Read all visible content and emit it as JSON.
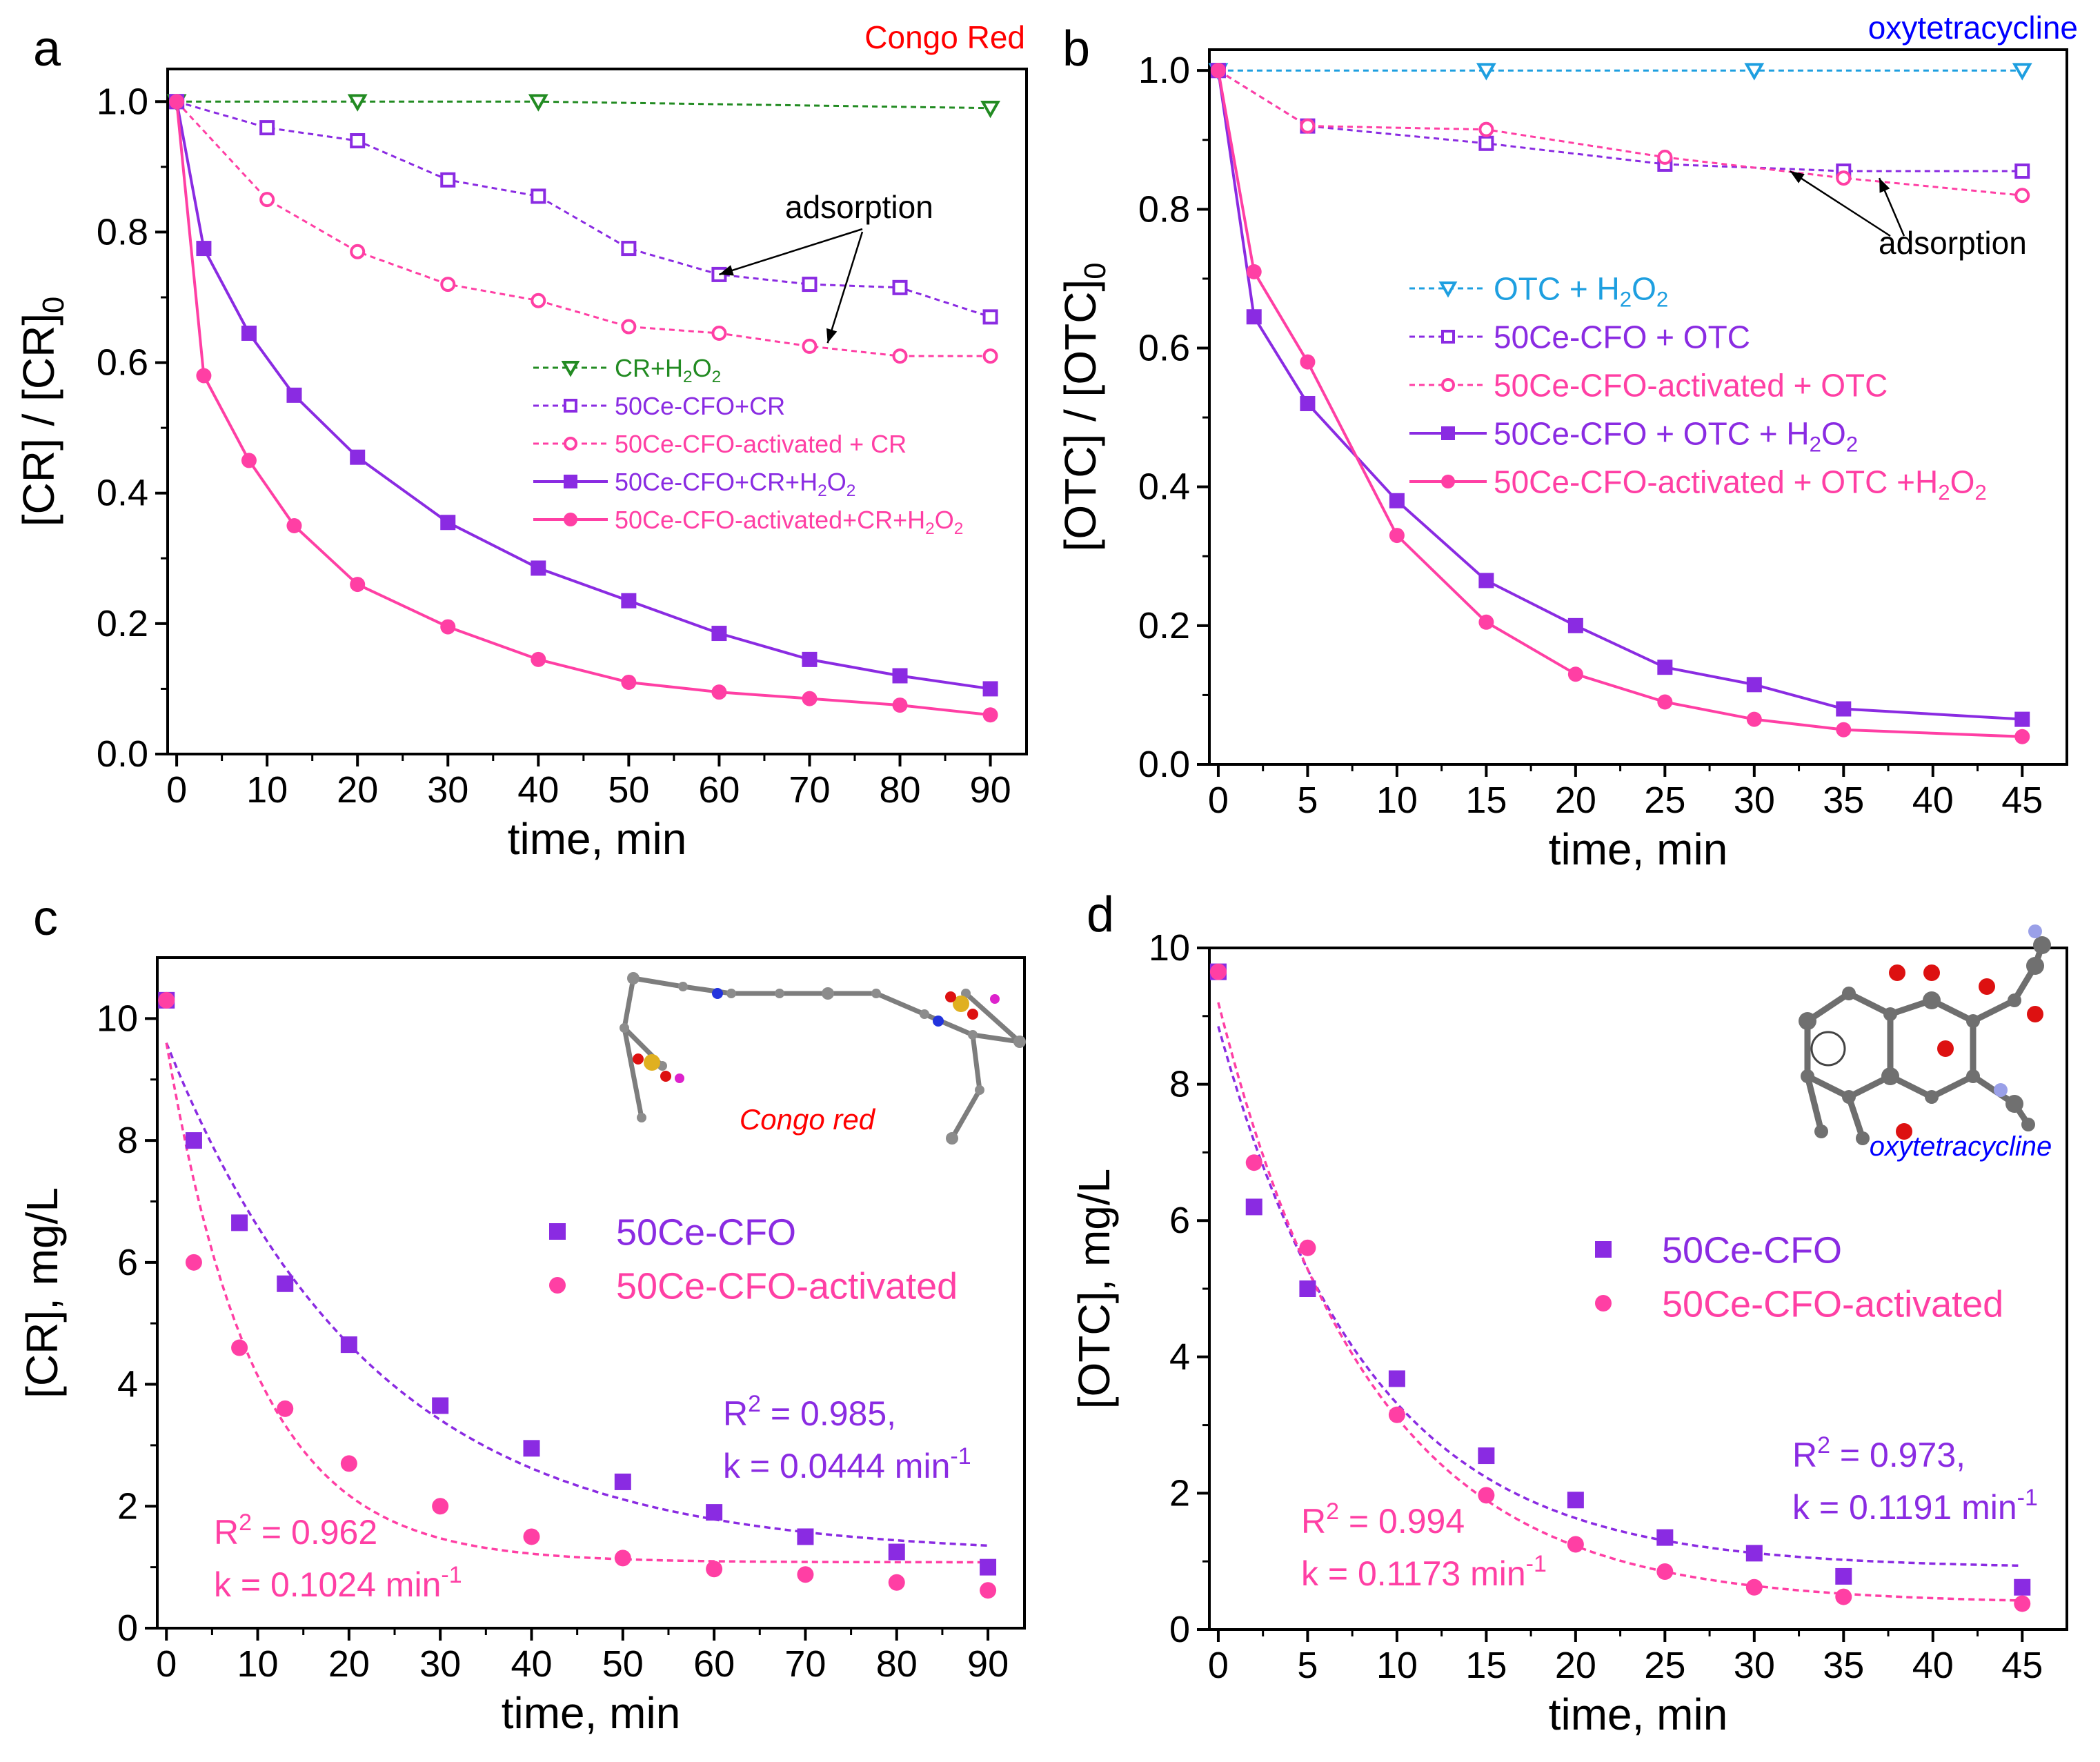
{
  "colors": {
    "green": "#228B22",
    "purple": "#8A2BE2",
    "pink": "#FF3FA4",
    "red": "#FF0000",
    "blue": "#0000FF",
    "cyan": "#1E9FE0"
  },
  "chart_data": [
    {
      "id": "a",
      "type": "line",
      "panel_label": "a",
      "title": "Congo Red",
      "title_color": "red",
      "xlabel": "time, min",
      "ylabel": "[CR] / [CR]₀",
      "xlim": [
        -1,
        94
      ],
      "ylim": [
        0,
        1.05
      ],
      "xticks": [
        0,
        10,
        20,
        30,
        40,
        50,
        60,
        70,
        80,
        90
      ],
      "yticks": [
        0.0,
        0.2,
        0.4,
        0.6,
        0.8,
        1.0
      ],
      "legend_position": "center-right",
      "series": [
        {
          "name": "CR+H₂O₂",
          "color": "green",
          "marker": "triangle-down-open",
          "dash": true,
          "x": [
            0,
            20,
            40,
            90
          ],
          "y": [
            1.0,
            1.0,
            1.0,
            0.99
          ]
        },
        {
          "name": "50Ce-CFO+CR",
          "color": "purple",
          "marker": "square-open",
          "dash": true,
          "x": [
            0,
            10,
            20,
            30,
            40,
            50,
            60,
            70,
            80,
            90
          ],
          "y": [
            1.0,
            0.96,
            0.94,
            0.88,
            0.855,
            0.775,
            0.735,
            0.72,
            0.715,
            0.67
          ]
        },
        {
          "name": "50Ce-CFO-activated + CR",
          "color": "pink",
          "marker": "circle-open",
          "dash": true,
          "x": [
            0,
            10,
            20,
            30,
            40,
            50,
            60,
            70,
            80,
            90
          ],
          "y": [
            1.0,
            0.85,
            0.77,
            0.72,
            0.695,
            0.655,
            0.645,
            0.625,
            0.61,
            0.61
          ]
        },
        {
          "name": "50Ce-CFO+CR+H₂O₂",
          "color": "purple",
          "marker": "square",
          "dash": false,
          "x": [
            0,
            3,
            8,
            13,
            20,
            30,
            40,
            50,
            60,
            70,
            80,
            90
          ],
          "y": [
            1.0,
            0.775,
            0.645,
            0.55,
            0.455,
            0.355,
            0.285,
            0.235,
            0.185,
            0.145,
            0.12,
            0.1
          ]
        },
        {
          "name": "50Ce-CFO-activated+CR+H₂O₂",
          "color": "pink",
          "marker": "circle",
          "dash": false,
          "x": [
            0,
            3,
            8,
            13,
            20,
            30,
            40,
            50,
            60,
            70,
            80,
            90
          ],
          "y": [
            1.0,
            0.58,
            0.45,
            0.35,
            0.26,
            0.195,
            0.145,
            0.11,
            0.095,
            0.085,
            0.075,
            0.06
          ]
        }
      ],
      "annotations": [
        {
          "text": "adsorption",
          "arrow_targets": [
            [
              60,
              0.735
            ],
            [
              72,
              0.63
            ]
          ]
        }
      ]
    },
    {
      "id": "b",
      "type": "line",
      "panel_label": "b",
      "title": "oxytetracycline",
      "title_color": "blue",
      "xlabel": "time, min",
      "ylabel": "[OTC] / [OTC]₀",
      "xlim": [
        -0.5,
        47.5
      ],
      "ylim": [
        0,
        1.03
      ],
      "xticks": [
        0,
        5,
        10,
        15,
        20,
        25,
        30,
        35,
        40,
        45
      ],
      "yticks": [
        0.0,
        0.2,
        0.4,
        0.6,
        0.8,
        1.0
      ],
      "legend_position": "center",
      "series": [
        {
          "name": "OTC + H₂O₂",
          "color": "cyan",
          "marker": "triangle-down-open",
          "dash": true,
          "x": [
            0,
            15,
            30,
            45
          ],
          "y": [
            1.0,
            1.0,
            1.0,
            1.0
          ]
        },
        {
          "name": "50Ce-CFO + OTC",
          "color": "purple",
          "marker": "square-open",
          "dash": true,
          "x": [
            0,
            5,
            15,
            25,
            35,
            45
          ],
          "y": [
            1.0,
            0.92,
            0.895,
            0.865,
            0.855,
            0.855
          ]
        },
        {
          "name": "50Ce-CFO-activated + OTC",
          "color": "pink",
          "marker": "circle-open",
          "dash": true,
          "x": [
            0,
            5,
            15,
            25,
            35,
            45
          ],
          "y": [
            1.0,
            0.92,
            0.915,
            0.875,
            0.845,
            0.82
          ]
        },
        {
          "name": "50Ce-CFO + OTC + H₂O₂",
          "color": "purple",
          "marker": "square",
          "dash": false,
          "x": [
            0,
            2,
            5,
            10,
            15,
            20,
            25,
            30,
            35,
            45
          ],
          "y": [
            1.0,
            0.645,
            0.52,
            0.38,
            0.265,
            0.2,
            0.14,
            0.115,
            0.08,
            0.065
          ]
        },
        {
          "name": "50Ce-CFO-activated + OTC +H₂O₂",
          "color": "pink",
          "marker": "circle",
          "dash": false,
          "x": [
            0,
            2,
            5,
            10,
            15,
            20,
            25,
            30,
            35,
            45
          ],
          "y": [
            1.0,
            0.71,
            0.58,
            0.33,
            0.205,
            0.13,
            0.09,
            0.065,
            0.05,
            0.04
          ]
        }
      ],
      "annotations": [
        {
          "text": "adsorption",
          "arrow_targets": [
            [
              32,
              0.855
            ],
            [
              37,
              0.845
            ]
          ]
        }
      ]
    },
    {
      "id": "c",
      "type": "scatter",
      "panel_label": "c",
      "xlabel": "time, min",
      "ylabel": "[CR], mg/L",
      "xlim": [
        -1,
        94
      ],
      "ylim": [
        0,
        11
      ],
      "xticks": [
        0,
        10,
        20,
        30,
        40,
        50,
        60,
        70,
        80,
        90
      ],
      "yticks": [
        0,
        2,
        4,
        6,
        8,
        10
      ],
      "legend_position": "center-right",
      "inset_caption": "Congo red",
      "inset_caption_color": "red",
      "series": [
        {
          "name": "50Ce-CFO",
          "color": "purple",
          "marker": "square",
          "x": [
            0,
            3,
            8,
            13,
            20,
            30,
            40,
            50,
            60,
            70,
            80,
            90
          ],
          "y": [
            10.3,
            8.0,
            6.65,
            5.65,
            4.65,
            3.65,
            2.95,
            2.4,
            1.9,
            1.5,
            1.25,
            1.0
          ]
        },
        {
          "name": "50Ce-CFO-activated",
          "color": "pink",
          "marker": "circle",
          "x": [
            0,
            3,
            8,
            13,
            20,
            30,
            40,
            50,
            60,
            70,
            80,
            90
          ],
          "y": [
            10.3,
            6.0,
            4.6,
            3.6,
            2.7,
            2.0,
            1.5,
            1.15,
            0.97,
            0.88,
            0.75,
            0.62
          ]
        }
      ],
      "fits": [
        {
          "series": "50Ce-CFO",
          "color": "purple",
          "c0": 9.6,
          "k": 0.0444,
          "cinf": 1.2,
          "x_range": [
            0,
            90
          ],
          "r2_label": "R",
          "r2_sup": "2",
          "r2_value": " = 0.985,",
          "k_label": "k = 0.0444 min",
          "k_sup": "-1"
        },
        {
          "series": "50Ce-CFO-activated",
          "color": "pink",
          "c0": 9.6,
          "k": 0.1024,
          "cinf": 1.08,
          "x_range": [
            0,
            90
          ],
          "r2_label": "R",
          "r2_sup": "2",
          "r2_value": " = 0.962",
          "k_label": "k = 0.1024 min",
          "k_sup": "-1"
        }
      ]
    },
    {
      "id": "d",
      "type": "scatter",
      "panel_label": "d",
      "xlabel": "time, min",
      "ylabel": "[OTC], mg/L",
      "xlim": [
        -0.5,
        47.5
      ],
      "ylim": [
        0,
        10
      ],
      "xticks": [
        0,
        5,
        10,
        15,
        20,
        25,
        30,
        35,
        40,
        45
      ],
      "yticks": [
        0,
        2,
        4,
        6,
        8,
        10
      ],
      "legend_position": "center-right",
      "inset_caption": "oxytetracycline",
      "inset_caption_color": "blue",
      "series": [
        {
          "name": "50Ce-CFO",
          "color": "purple",
          "marker": "square",
          "x": [
            0,
            2,
            5,
            10,
            15,
            20,
            25,
            30,
            35,
            45
          ],
          "y": [
            9.65,
            6.2,
            5.0,
            3.68,
            2.55,
            1.9,
            1.35,
            1.12,
            0.78,
            0.62
          ]
        },
        {
          "name": "50Ce-CFO-activated",
          "color": "pink",
          "marker": "circle",
          "x": [
            0,
            2,
            5,
            10,
            15,
            20,
            25,
            30,
            35,
            45
          ],
          "y": [
            9.65,
            6.85,
            5.6,
            3.15,
            1.97,
            1.25,
            0.85,
            0.62,
            0.48,
            0.38
          ]
        }
      ],
      "fits": [
        {
          "series": "50Ce-CFO",
          "color": "purple",
          "c0": 8.85,
          "k": 0.1191,
          "cinf": 0.9,
          "x_range": [
            0,
            45
          ],
          "r2_label": "R",
          "r2_sup": "2",
          "r2_value": " = 0.973,",
          "k_label": "k = 0.1191 min",
          "k_sup": "-1"
        },
        {
          "series": "50Ce-CFO-activated",
          "color": "pink",
          "c0": 9.2,
          "k": 0.1173,
          "cinf": 0.38,
          "x_range": [
            0,
            45
          ],
          "r2_label": "R",
          "r2_sup": "2",
          "r2_value": " = 0.994",
          "k_label": "k = 0.1173 min",
          "k_sup": "-1"
        }
      ]
    }
  ]
}
